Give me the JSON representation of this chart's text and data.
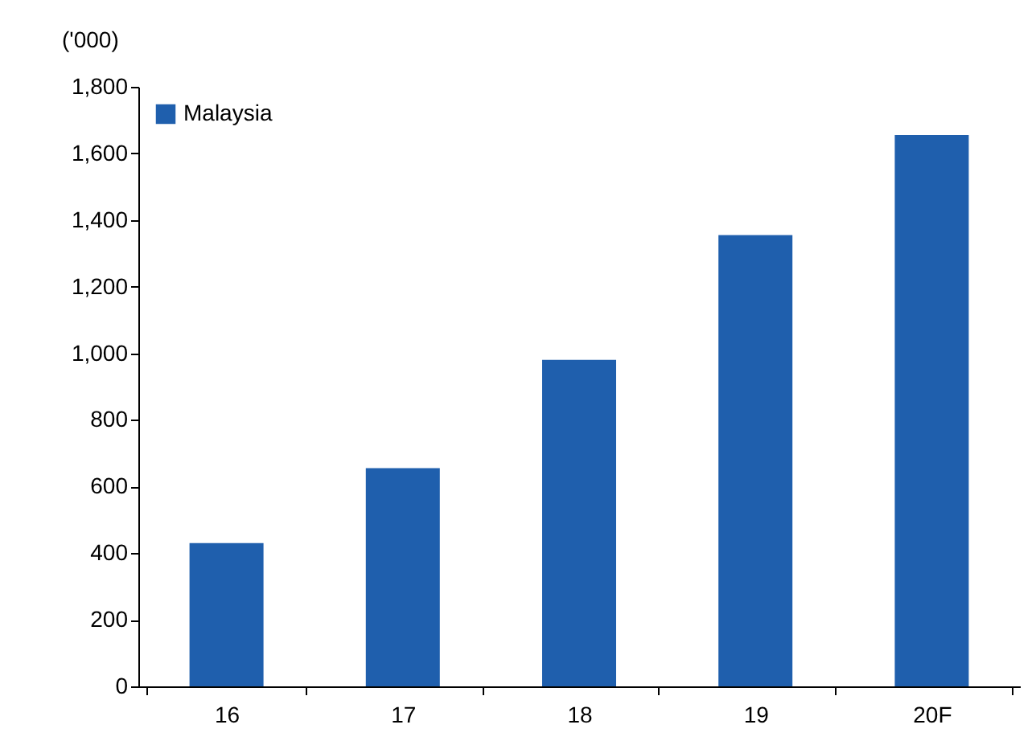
{
  "chart_data": {
    "type": "bar",
    "ylabel": "('000)",
    "categories": [
      "16",
      "17",
      "18",
      "19",
      "20F"
    ],
    "series": [
      {
        "name": "Malaysia",
        "color": "#1f5fad",
        "values": [
          430,
          655,
          980,
          1355,
          1655
        ]
      }
    ],
    "ylim": [
      0,
      1800
    ],
    "yticks": [
      0,
      200,
      400,
      600,
      800,
      {
        "value": 1000,
        "label": "1,000"
      },
      {
        "value": 1200,
        "label": "1,200"
      },
      {
        "value": 1400,
        "label": "1,400"
      },
      {
        "value": 1600,
        "label": "1,600"
      },
      {
        "value": 1800,
        "label": "1,800"
      }
    ],
    "grid": false,
    "legend": "top left"
  }
}
